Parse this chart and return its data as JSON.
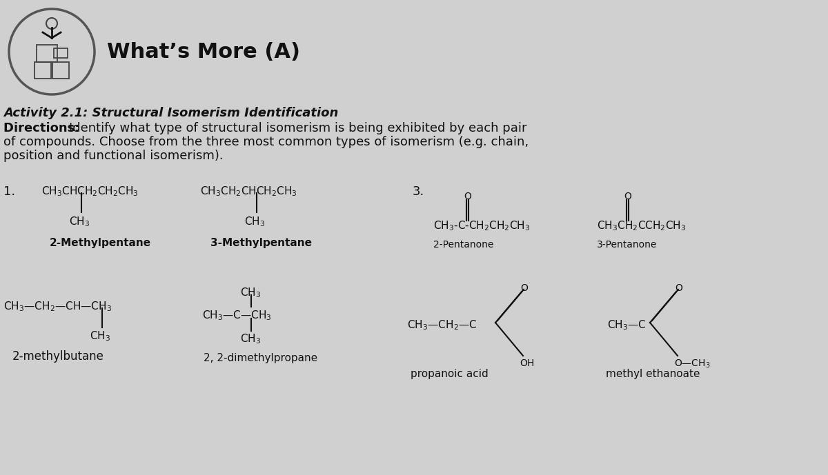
{
  "bg_color": "#d0d0d0",
  "title": "What’s More (A)",
  "activity_line": "Activity 2.1: Structural Isomerism Identification",
  "dir_bold": "Directions: ",
  "dir_rest1": "Identify what type of structural isomerism is being exhibited by each pair",
  "dir_rest2": "of compounds. Choose from the three most common types of isomerism (e.g. chain,",
  "dir_rest3": "position and functional isomerism).",
  "text_color": "#111111"
}
